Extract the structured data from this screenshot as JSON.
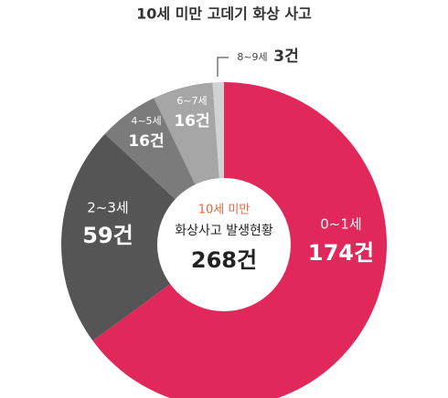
{
  "chart_data": {
    "type": "donut",
    "title": "10세 미만 고데기 화상 사고",
    "categories": [
      "0~1세",
      "2~3세",
      "4~5세",
      "6~7세",
      "8~9세"
    ],
    "values": [
      174,
      59,
      16,
      16,
      3
    ],
    "value_labels": [
      "174건",
      "59건",
      "16건",
      "16건",
      "3건"
    ],
    "colors": [
      "#e0295a",
      "#555555",
      "#7b7b7b",
      "#a6a6a6",
      "#d2d2d2"
    ],
    "center": {
      "subtitle": "10세 미만",
      "label": "화상사고 발생현황",
      "total": {
        "value": 268,
        "label": "268건"
      }
    }
  }
}
